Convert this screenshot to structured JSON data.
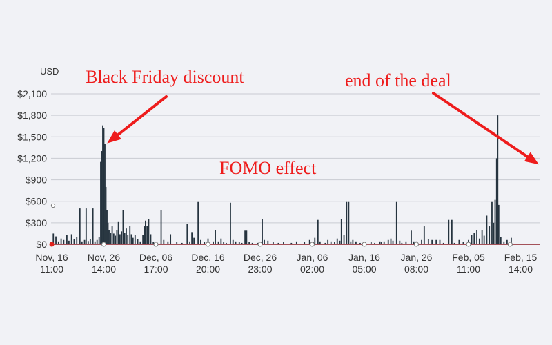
{
  "chart_data": {
    "type": "bar",
    "title": "",
    "xlabel": "",
    "ylabel": "USD",
    "ylim": [
      0,
      2100
    ],
    "yticks": [
      0,
      300,
      600,
      900,
      1200,
      1500,
      1800,
      2100
    ],
    "ytick_labels": [
      "$0",
      "$300",
      "$600",
      "$900",
      "$1,200",
      "$1,500",
      "$1,800",
      "$2,100"
    ],
    "xticks": [
      {
        "date": "Nov, 16",
        "time": "11:00"
      },
      {
        "date": "Nov, 26",
        "time": "14:00"
      },
      {
        "date": "Dec, 06",
        "time": "17:00"
      },
      {
        "date": "Dec, 16",
        "time": "20:00"
      },
      {
        "date": "Dec, 26",
        "time": "23:00"
      },
      {
        "date": "Jan, 06",
        "time": "02:00"
      },
      {
        "date": "Jan, 16",
        "time": "05:00"
      },
      {
        "date": "Jan, 26",
        "time": "08:00"
      },
      {
        "date": "Feb, 05",
        "time": "11:00"
      },
      {
        "date": "Feb, 15",
        "time": "14:00"
      }
    ],
    "grid": true,
    "bar_color": "#26343f",
    "accent_color": "#8b1c25",
    "annotation_color": "#ee1c1c",
    "annotations": [
      {
        "text": "Black Friday discount",
        "target_day": 10.1,
        "target_value": 1660
      },
      {
        "text": "end of the deal",
        "target_day": 91.5,
        "target_value": 1500
      },
      {
        "text": "FOMO effect"
      }
    ],
    "x_unit": "days since Nov, 16 11:00",
    "values": [
      [
        0.3,
        150
      ],
      [
        0.8,
        110
      ],
      [
        1.3,
        40
      ],
      [
        1.8,
        80
      ],
      [
        2.3,
        60
      ],
      [
        2.9,
        130
      ],
      [
        3.3,
        50
      ],
      [
        3.8,
        140
      ],
      [
        4.3,
        70
      ],
      [
        4.8,
        100
      ],
      [
        5.4,
        500
      ],
      [
        5.8,
        40
      ],
      [
        6.3,
        60
      ],
      [
        6.6,
        500
      ],
      [
        7.0,
        45
      ],
      [
        7.4,
        70
      ],
      [
        7.9,
        500
      ],
      [
        8.3,
        40
      ],
      [
        8.7,
        60
      ],
      [
        9.1,
        100
      ],
      [
        9.4,
        1150
      ],
      [
        9.6,
        1300
      ],
      [
        9.8,
        1660
      ],
      [
        10.0,
        1620
      ],
      [
        10.2,
        1400
      ],
      [
        10.4,
        800
      ],
      [
        10.6,
        480
      ],
      [
        10.8,
        300
      ],
      [
        11.0,
        200
      ],
      [
        11.3,
        160
      ],
      [
        11.6,
        250
      ],
      [
        11.9,
        150
      ],
      [
        12.2,
        120
      ],
      [
        12.5,
        200
      ],
      [
        12.8,
        310
      ],
      [
        13.1,
        140
      ],
      [
        13.4,
        180
      ],
      [
        13.7,
        480
      ],
      [
        14.0,
        160
      ],
      [
        14.3,
        220
      ],
      [
        14.6,
        130
      ],
      [
        15.0,
        260
      ],
      [
        15.3,
        140
      ],
      [
        15.6,
        90
      ],
      [
        16.0,
        130
      ],
      [
        16.5,
        70
      ],
      [
        17.0,
        40
      ],
      [
        17.5,
        130
      ],
      [
        17.8,
        250
      ],
      [
        18.0,
        330
      ],
      [
        18.3,
        260
      ],
      [
        18.6,
        350
      ],
      [
        19.0,
        140
      ],
      [
        19.5,
        30
      ],
      [
        20.0,
        20
      ],
      [
        21.0,
        480
      ],
      [
        21.5,
        60
      ],
      [
        22.3,
        40
      ],
      [
        22.8,
        140
      ],
      [
        24.0,
        30
      ],
      [
        25.0,
        20
      ],
      [
        26.0,
        280
      ],
      [
        26.5,
        40
      ],
      [
        26.9,
        170
      ],
      [
        27.3,
        90
      ],
      [
        28.1,
        590
      ],
      [
        28.6,
        60
      ],
      [
        29.3,
        30
      ],
      [
        30.0,
        80
      ],
      [
        31.0,
        40
      ],
      [
        31.4,
        200
      ],
      [
        32.0,
        40
      ],
      [
        32.5,
        80
      ],
      [
        33.0,
        30
      ],
      [
        33.5,
        20
      ],
      [
        34.3,
        580
      ],
      [
        34.8,
        60
      ],
      [
        35.3,
        40
      ],
      [
        36.0,
        30
      ],
      [
        36.5,
        20
      ],
      [
        37.1,
        190
      ],
      [
        37.4,
        190
      ],
      [
        37.9,
        30
      ],
      [
        38.5,
        20
      ],
      [
        39.5,
        20
      ],
      [
        40.4,
        350
      ],
      [
        40.8,
        60
      ],
      [
        41.5,
        50
      ],
      [
        42.5,
        30
      ],
      [
        43.5,
        20
      ],
      [
        44.5,
        30
      ],
      [
        46.0,
        20
      ],
      [
        47.0,
        40
      ],
      [
        48.5,
        30
      ],
      [
        49.5,
        60
      ],
      [
        50.2,
        30
      ],
      [
        50.5,
        90
      ],
      [
        51.1,
        340
      ],
      [
        51.5,
        40
      ],
      [
        52.5,
        20
      ],
      [
        53.0,
        60
      ],
      [
        53.6,
        40
      ],
      [
        54.3,
        30
      ],
      [
        54.8,
        80
      ],
      [
        55.3,
        50
      ],
      [
        55.6,
        350
      ],
      [
        56.1,
        130
      ],
      [
        56.6,
        590
      ],
      [
        57.0,
        590
      ],
      [
        57.4,
        40
      ],
      [
        57.8,
        60
      ],
      [
        58.4,
        40
      ],
      [
        59.2,
        20
      ],
      [
        60.0,
        20
      ],
      [
        61.3,
        30
      ],
      [
        62.0,
        20
      ],
      [
        63.0,
        40
      ],
      [
        63.3,
        30
      ],
      [
        63.8,
        40
      ],
      [
        64.6,
        60
      ],
      [
        65.1,
        80
      ],
      [
        65.5,
        50
      ],
      [
        66.2,
        590
      ],
      [
        66.8,
        50
      ],
      [
        67.2,
        20
      ],
      [
        68.0,
        40
      ],
      [
        69.0,
        190
      ],
      [
        69.5,
        40
      ],
      [
        70.0,
        40
      ],
      [
        71.0,
        60
      ],
      [
        71.5,
        250
      ],
      [
        72.3,
        70
      ],
      [
        73.0,
        60
      ],
      [
        73.8,
        60
      ],
      [
        74.5,
        60
      ],
      [
        75.2,
        20
      ],
      [
        76.2,
        340
      ],
      [
        76.8,
        340
      ],
      [
        77.3,
        20
      ],
      [
        78.2,
        60
      ],
      [
        79.0,
        30
      ],
      [
        80.0,
        60
      ],
      [
        80.6,
        130
      ],
      [
        81.1,
        160
      ],
      [
        81.6,
        200
      ],
      [
        82.1,
        80
      ],
      [
        82.6,
        200
      ],
      [
        83.0,
        120
      ],
      [
        83.5,
        400
      ],
      [
        84.0,
        250
      ],
      [
        84.5,
        590
      ],
      [
        84.8,
        300
      ],
      [
        85.1,
        620
      ],
      [
        85.4,
        1200
      ],
      [
        85.6,
        1800
      ],
      [
        85.8,
        550
      ],
      [
        86.2,
        100
      ],
      [
        86.8,
        40
      ],
      [
        87.4,
        60
      ],
      [
        88.2,
        90
      ]
    ]
  },
  "bottom_markers": [
    {
      "day": 0.0,
      "kind": "red"
    },
    {
      "day": 10.0,
      "kind": "white"
    },
    {
      "day": 20.0,
      "kind": "white"
    },
    {
      "day": 30.0,
      "kind": "white"
    },
    {
      "day": 40.0,
      "kind": "white"
    },
    {
      "day": 50.0,
      "kind": "white"
    },
    {
      "day": 60.0,
      "kind": "white"
    },
    {
      "day": 70.0,
      "kind": "white"
    },
    {
      "day": 80.0,
      "kind": "white"
    },
    {
      "day": 88.0,
      "kind": "white"
    }
  ]
}
